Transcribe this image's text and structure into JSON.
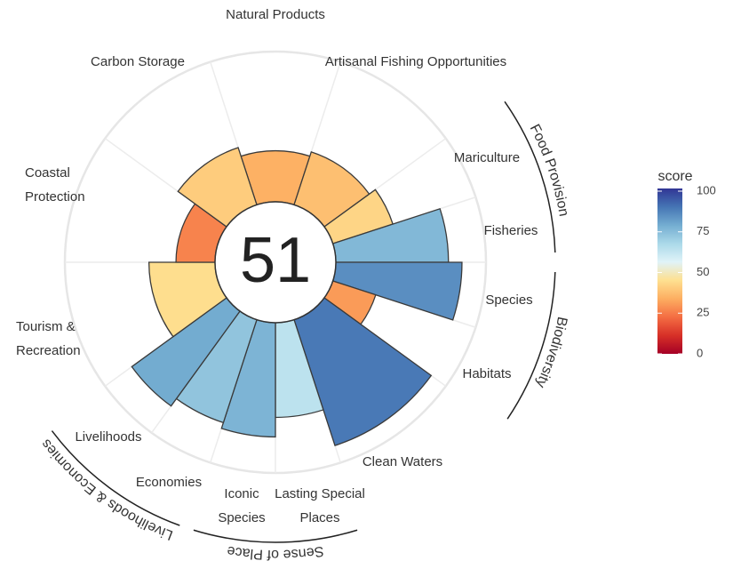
{
  "chart_data": {
    "type": "flower",
    "center_value": 51,
    "categories": [
      [
        "Natural Products"
      ],
      [
        "Artisanal Fishing Opportunities"
      ],
      [
        "Mariculture"
      ],
      [
        "Fisheries"
      ],
      [
        "Species"
      ],
      [
        "Habitats"
      ],
      [
        "Clean Waters"
      ],
      [
        "Lasting Special",
        "Places"
      ],
      [
        "Iconic",
        "Species"
      ],
      [
        "Economies"
      ],
      [
        "Livelihoods"
      ],
      [
        "Tourism &",
        "Recreation"
      ],
      [
        "Coastal",
        "Protection"
      ],
      [
        "Carbon Storage"
      ]
    ],
    "values": [
      34,
      37,
      42,
      75,
      84,
      30,
      88,
      63,
      76,
      72,
      78,
      44,
      26,
      40
    ],
    "groups": [
      "Food Provision",
      "Biodiversity",
      "Sense of Place",
      "Livelihoods & Economies"
    ],
    "rlim": [
      0,
      100
    ],
    "colorbar_title": "score",
    "colorbar_ticks": [
      0,
      25,
      50,
      75,
      100
    ],
    "colorscale": [
      "#a50026",
      "#d73027",
      "#f46d43",
      "#fdae61",
      "#fee090",
      "#e0f3f8",
      "#abd9e9",
      "#74add1",
      "#4575b4",
      "#313695"
    ]
  }
}
